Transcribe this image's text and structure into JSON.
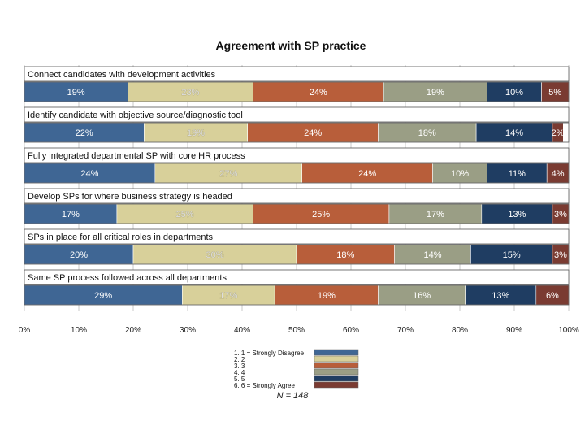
{
  "chart_data": {
    "type": "bar",
    "orientation": "horizontal",
    "stacked": true,
    "title": "Agreement with SP practice",
    "categories": [
      "Connect candidates with development activities",
      "Identify candidate with objective source/diagnostic tool",
      "Fully integrated departmental SP with core HR process",
      "Develop SPs for where business strategy is headed",
      "SPs in place for all critical roles in departments",
      "Same SP process followed across all departments"
    ],
    "series": [
      {
        "name": "1. 1 = Strongly Disagree",
        "color": "#3f6694",
        "values": [
          19,
          22,
          24,
          17,
          20,
          29
        ]
      },
      {
        "name": "2. 2",
        "color": "#d8d09a",
        "values": [
          23,
          19,
          27,
          25,
          30,
          17
        ]
      },
      {
        "name": "3. 3",
        "color": "#b85e3a",
        "values": [
          24,
          24,
          24,
          25,
          18,
          19
        ]
      },
      {
        "name": "4. 4",
        "color": "#9a9e85",
        "values": [
          19,
          18,
          10,
          17,
          14,
          16
        ]
      },
      {
        "name": "5. 5",
        "color": "#1f3d62",
        "values": [
          10,
          14,
          11,
          13,
          15,
          13
        ]
      },
      {
        "name": "6. 6 = Strongly Agree",
        "color": "#7a3b32",
        "values": [
          5,
          2,
          4,
          3,
          3,
          6
        ]
      }
    ],
    "data_labels": [
      [
        "19%",
        "23%",
        "24%",
        "19%",
        "10%",
        "5%"
      ],
      [
        "22%",
        "19%",
        "24%",
        "18%",
        "14%",
        "2%"
      ],
      [
        "24%",
        "27%",
        "24%",
        "10%",
        "11%",
        "4%"
      ],
      [
        "17%",
        "25%",
        "25%",
        "17%",
        "13%",
        "3%"
      ],
      [
        "20%",
        "30%",
        "18%",
        "14%",
        "15%",
        "3%"
      ],
      [
        "29%",
        "17%",
        "19%",
        "16%",
        "13%",
        "6%"
      ]
    ],
    "x_ticks": [
      "0%",
      "10%",
      "20%",
      "30%",
      "40%",
      "50%",
      "60%",
      "70%",
      "80%",
      "90%",
      "100%"
    ],
    "xlim": [
      0,
      100
    ],
    "grid": true,
    "legend_position": "bottom-center",
    "note": "N = 148"
  }
}
